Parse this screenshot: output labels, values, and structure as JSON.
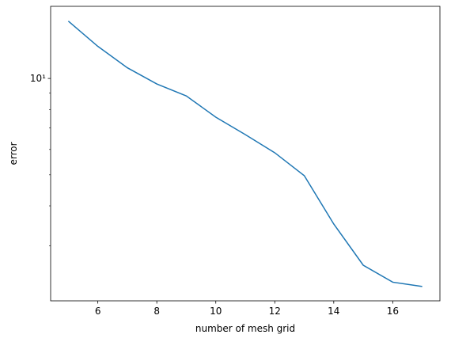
{
  "chart_data": {
    "type": "line",
    "x_label": "number of mesh grid",
    "y_label": "error",
    "x": [
      5,
      6,
      7,
      8,
      9,
      10,
      11,
      12,
      13,
      14,
      15,
      16,
      17
    ],
    "series": [
      {
        "color": "#1f77b4",
        "values": [
          15.1,
          12.6,
          10.8,
          9.61,
          8.82,
          7.57,
          6.68,
          5.86,
          4.97,
          3.51,
          2.61,
          2.31,
          2.24
        ]
      }
    ],
    "xlim": [
      4.4,
      17.6
    ],
    "xticks": [
      6,
      8,
      10,
      12,
      14,
      16
    ],
    "ylim": [
      2.02,
      16.8
    ],
    "yscale": "log",
    "yticks": [
      {
        "value": 10,
        "label": "10¹"
      }
    ],
    "yminorticks": [
      3,
      4,
      5,
      6,
      7,
      8,
      9
    ]
  }
}
